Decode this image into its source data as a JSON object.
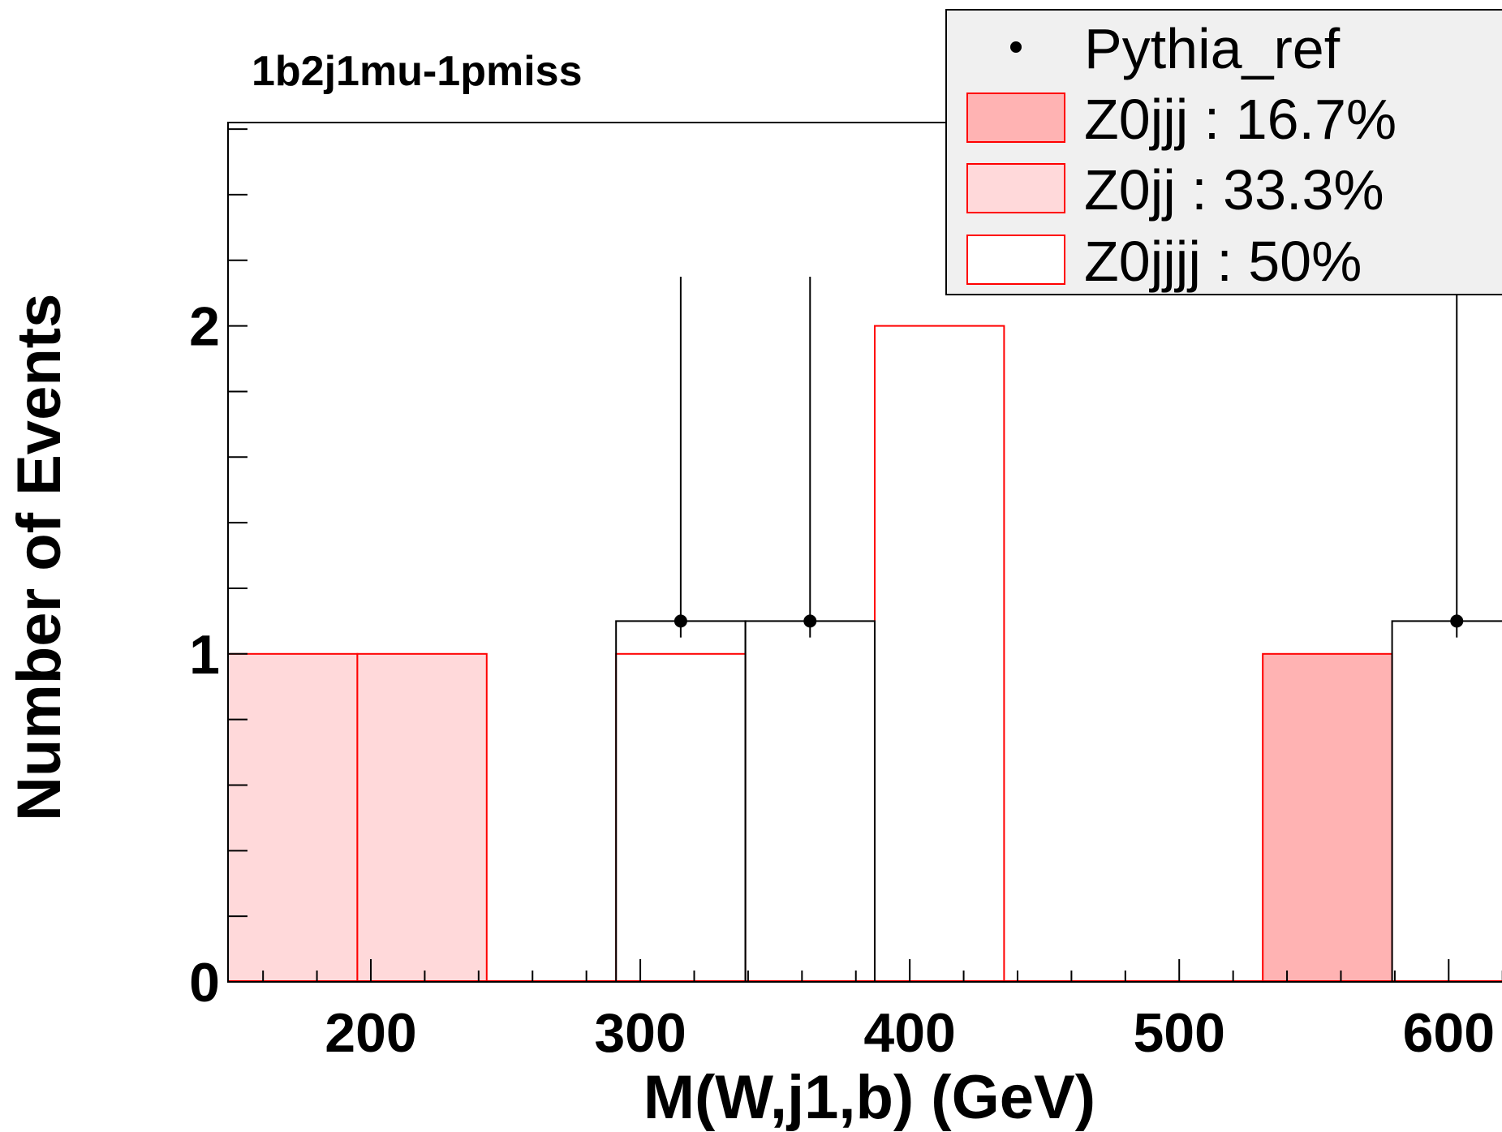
{
  "chart_data": {
    "type": "bar",
    "title": "1b2j1mu-1pmiss",
    "xlabel": "M(W,j1,b) (GeV)",
    "ylabel": "Number of Events",
    "xlim": [
      147,
      624
    ],
    "ylim": [
      0,
      2.62
    ],
    "xticks": [
      {
        "value": 200,
        "label": "200"
      },
      {
        "value": 300,
        "label": "300"
      },
      {
        "value": 400,
        "label": "400"
      },
      {
        "value": 500,
        "label": "500"
      },
      {
        "value": 600,
        "label": "600"
      }
    ],
    "yticks": [
      {
        "value": 0,
        "label": "0"
      },
      {
        "value": 1,
        "label": "1"
      },
      {
        "value": 2,
        "label": "2"
      }
    ],
    "bin_edges": [
      147,
      195,
      243,
      291,
      339,
      387,
      435,
      483,
      531,
      579,
      627
    ],
    "series": [
      {
        "name": "Z0jjj",
        "kind": "stack",
        "fill": "#ffb3b3",
        "stroke": "#ff0000",
        "values": [
          0,
          0,
          0,
          0,
          0,
          0,
          0,
          0,
          1,
          0
        ]
      },
      {
        "name": "Z0jj",
        "kind": "stack",
        "fill": "#ffd9da",
        "stroke": "#ff0000",
        "values": [
          1,
          1,
          0,
          0,
          0,
          0,
          0,
          0,
          0,
          0
        ]
      },
      {
        "name": "Z0jjjj",
        "kind": "stack",
        "fill": "#ffffff",
        "stroke": "#ff0000",
        "values": [
          0,
          0,
          0,
          1,
          0,
          2,
          0,
          0,
          0,
          0
        ]
      }
    ],
    "reference": {
      "name": "Pythia_ref",
      "step_values": [
        0,
        0,
        0,
        1.1,
        1.1,
        0,
        0,
        0,
        0,
        1.1
      ],
      "points": [
        {
          "x": 315,
          "y": 1.1,
          "err_low": 1.05,
          "err_high": 2.15
        },
        {
          "x": 363,
          "y": 1.1,
          "err_low": 1.05,
          "err_high": 2.15
        },
        {
          "x": 603,
          "y": 1.1,
          "err_low": 1.05,
          "err_high": 2.15
        }
      ]
    },
    "legend": {
      "position": "top-right",
      "entries": [
        {
          "label": "Pythia_ref",
          "style": "marker"
        },
        {
          "label": "Z0jjj : 16.7%",
          "style": "box",
          "fill": "#ffb3b3"
        },
        {
          "label": "Z0jj : 33.3%",
          "style": "box",
          "fill": "#ffd9da"
        },
        {
          "label": "Z0jjjj : 50%",
          "style": "box",
          "fill": "#ffffff"
        }
      ]
    }
  }
}
